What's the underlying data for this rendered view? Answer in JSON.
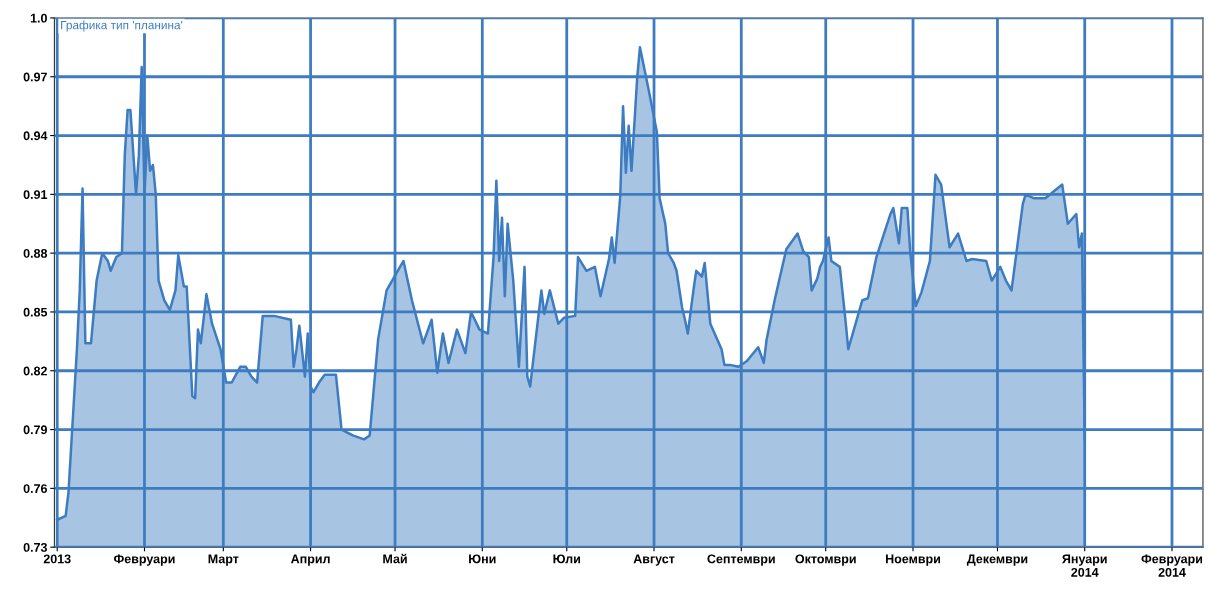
{
  "chart_data": {
    "type": "area",
    "title": "Графика тип 'планина'",
    "x": [
      "2013-01-01",
      "2013-01-04",
      "2013-01-05",
      "2013-01-08",
      "2013-01-09",
      "2013-01-10",
      "2013-01-11",
      "2013-01-13",
      "2013-01-15",
      "2013-01-17",
      "2013-01-19",
      "2013-01-20",
      "2013-01-22",
      "2013-01-24",
      "2013-01-25",
      "2013-01-26",
      "2013-01-27",
      "2013-01-29",
      "2013-01-30",
      "2013-01-31",
      "2013-02-01",
      "2013-02-02",
      "2013-02-03",
      "2013-02-04",
      "2013-02-05",
      "2013-02-06",
      "2013-02-08",
      "2013-02-10",
      "2013-02-12",
      "2013-02-13",
      "2013-02-15",
      "2013-02-16",
      "2013-02-18",
      "2013-02-19",
      "2013-02-20",
      "2013-02-21",
      "2013-02-23",
      "2013-02-25",
      "2013-02-28",
      "2013-03-02",
      "2013-03-04",
      "2013-03-07",
      "2013-03-09",
      "2013-03-11",
      "2013-03-13",
      "2013-03-15",
      "2013-03-19",
      "2013-03-25",
      "2013-03-26",
      "2013-03-27",
      "2013-03-28",
      "2013-03-30",
      "2013-03-31",
      "2013-04-01",
      "2013-04-02",
      "2013-04-04",
      "2013-04-06",
      "2013-04-10",
      "2013-04-12",
      "2013-04-16",
      "2013-04-20",
      "2013-04-22",
      "2013-04-25",
      "2013-04-28",
      "2013-05-04",
      "2013-05-07",
      "2013-05-11",
      "2013-05-14",
      "2013-05-16",
      "2013-05-18",
      "2013-05-20",
      "2013-05-23",
      "2013-05-26",
      "2013-05-28",
      "2013-05-31",
      "2013-06-03",
      "2013-06-05",
      "2013-06-06",
      "2013-06-07",
      "2013-06-08",
      "2013-06-09",
      "2013-06-10",
      "2013-06-12",
      "2013-06-14",
      "2013-06-16",
      "2013-06-17",
      "2013-06-18",
      "2013-06-22",
      "2013-06-23",
      "2013-06-25",
      "2013-06-28",
      "2013-06-30",
      "2013-07-04",
      "2013-07-05",
      "2013-07-08",
      "2013-07-11",
      "2013-07-13",
      "2013-07-16",
      "2013-07-17",
      "2013-07-18",
      "2013-07-20",
      "2013-07-21",
      "2013-07-22",
      "2013-07-23",
      "2013-07-24",
      "2013-07-26",
      "2013-07-27",
      "2013-07-30",
      "2013-08-02",
      "2013-08-03",
      "2013-08-05",
      "2013-08-06",
      "2013-08-08",
      "2013-08-09",
      "2013-08-11",
      "2013-08-12",
      "2013-08-13",
      "2013-08-15",
      "2013-08-16",
      "2013-08-18",
      "2013-08-19",
      "2013-08-21",
      "2013-08-25",
      "2013-08-26",
      "2013-08-28",
      "2013-08-31",
      "2013-09-03",
      "2013-09-07",
      "2013-09-09",
      "2013-09-10",
      "2013-09-13",
      "2013-09-17",
      "2013-09-21",
      "2013-09-23",
      "2013-09-25",
      "2013-09-26",
      "2013-09-28",
      "2013-09-29",
      "2013-09-30",
      "2013-10-02",
      "2013-10-03",
      "2013-10-06",
      "2013-10-08",
      "2013-10-09",
      "2013-10-11",
      "2013-10-14",
      "2013-10-16",
      "2013-10-19",
      "2013-10-24",
      "2013-10-25",
      "2013-10-27",
      "2013-10-28",
      "2013-10-30",
      "2013-10-31",
      "2013-11-02",
      "2013-11-04",
      "2013-11-07",
      "2013-11-09",
      "2013-11-11",
      "2013-11-14",
      "2013-11-17",
      "2013-11-20",
      "2013-11-22",
      "2013-11-27",
      "2013-11-29",
      "2013-12-02",
      "2013-12-04",
      "2013-12-06",
      "2013-12-10",
      "2013-12-11",
      "2013-12-14",
      "2013-12-18",
      "2013-12-24",
      "2013-12-26",
      "2013-12-29",
      "2013-12-30",
      "2013-12-31",
      "2014-01-01"
    ],
    "series": [
      {
        "color": "#3d7cc0",
        "values": [
          0.744,
          0.746,
          0.758,
          0.831,
          0.861,
          0.913,
          0.834,
          0.834,
          0.866,
          0.88,
          0.876,
          0.871,
          0.878,
          0.88,
          0.93,
          0.953,
          0.953,
          0.91,
          0.93,
          0.975,
          0.91,
          0.94,
          0.922,
          0.925,
          0.91,
          0.866,
          0.856,
          0.851,
          0.861,
          0.879,
          0.863,
          0.863,
          0.807,
          0.806,
          0.841,
          0.834,
          0.859,
          0.844,
          0.831,
          0.814,
          0.814,
          0.822,
          0.822,
          0.817,
          0.814,
          0.848,
          0.848,
          0.846,
          0.822,
          0.831,
          0.843,
          0.817,
          0.839,
          0.812,
          0.809,
          0.814,
          0.818,
          0.818,
          0.79,
          0.787,
          0.785,
          0.787,
          0.836,
          0.861,
          0.876,
          0.856,
          0.834,
          0.846,
          0.819,
          0.839,
          0.824,
          0.841,
          0.829,
          0.85,
          0.841,
          0.839,
          0.878,
          0.917,
          0.876,
          0.898,
          0.858,
          0.895,
          0.866,
          0.822,
          0.873,
          0.817,
          0.812,
          0.861,
          0.849,
          0.861,
          0.844,
          0.847,
          0.848,
          0.878,
          0.871,
          0.873,
          0.858,
          0.877,
          0.888,
          0.875,
          0.909,
          0.955,
          0.921,
          0.945,
          0.922,
          0.969,
          0.985,
          0.964,
          0.942,
          0.908,
          0.895,
          0.88,
          0.875,
          0.871,
          0.852,
          0.846,
          0.839,
          0.861,
          0.871,
          0.868,
          0.875,
          0.844,
          0.831,
          0.823,
          0.823,
          0.822,
          0.825,
          0.832,
          0.824,
          0.836,
          0.857,
          0.882,
          0.89,
          0.881,
          0.878,
          0.861,
          0.867,
          0.873,
          0.876,
          0.888,
          0.876,
          0.873,
          0.846,
          0.831,
          0.841,
          0.856,
          0.857,
          0.878,
          0.9,
          0.903,
          0.885,
          0.903,
          0.903,
          0.881,
          0.853,
          0.86,
          0.876,
          0.92,
          0.915,
          0.883,
          0.89,
          0.876,
          0.877,
          0.876,
          0.866,
          0.873,
          0.866,
          0.861,
          0.905,
          0.91,
          0.908,
          0.908,
          0.915,
          0.895,
          0.9,
          0.883,
          0.89,
          0.785
        ]
      }
    ],
    "xlim": [
      "2012-12-31",
      "2014-02-12"
    ],
    "xticks": [
      {
        "value": "2013-01-01",
        "label": "2013"
      },
      {
        "value": "2013-02-01",
        "label": "Февруари"
      },
      {
        "value": "2013-03-01",
        "label": "Март"
      },
      {
        "value": "2013-04-01",
        "label": "Април"
      },
      {
        "value": "2013-05-01",
        "label": "Май"
      },
      {
        "value": "2013-06-01",
        "label": "Юни"
      },
      {
        "value": "2013-07-01",
        "label": "Юли"
      },
      {
        "value": "2013-08-01",
        "label": "Август"
      },
      {
        "value": "2013-09-01",
        "label": "Септември"
      },
      {
        "value": "2013-10-01",
        "label": "Октомври"
      },
      {
        "value": "2013-11-01",
        "label": "Ноември"
      },
      {
        "value": "2013-12-01",
        "label": "Декември"
      },
      {
        "value": "2014-01-01",
        "label": "Януари\n2014"
      },
      {
        "value": "2014-02-01",
        "label": "Февруари\n2014"
      }
    ],
    "ylim": [
      0.73,
      1.0
    ],
    "yticks": [
      0.73,
      0.76,
      0.79,
      0.82,
      0.85,
      0.88,
      0.91,
      0.94,
      0.97,
      {
        "value": 1.0,
        "label": "1.0"
      }
    ],
    "grid": true
  }
}
